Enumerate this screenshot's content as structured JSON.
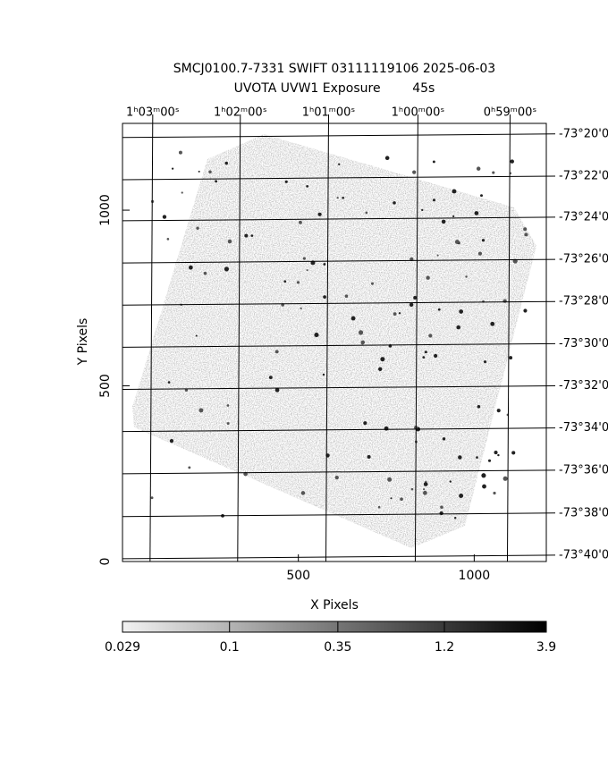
{
  "chart_data": {
    "type": "image",
    "title": "SMCJ0100.7-7331 SWIFT 03111119106 2025-06-03",
    "subtitle": "UVOTA UVW1 Exposure        45s",
    "x_label": "X Pixels",
    "y_label": "Y Pixels",
    "xlim": [
      0,
      1205
    ],
    "ylim": [
      0,
      1247
    ],
    "xticks": [
      500,
      1000
    ],
    "yticks": [
      0,
      500,
      1000
    ],
    "x2ticks": [
      {
        "value": 86,
        "label": "1ʰ03ᵐ00ˢ"
      },
      {
        "value": 335,
        "label": "1ʰ02ᵐ00ˢ"
      },
      {
        "value": 586,
        "label": "1ʰ01ᵐ00ˢ"
      },
      {
        "value": 840,
        "label": "1ʰ00ᵐ00ˢ"
      },
      {
        "value": 1102,
        "label": "0ʰ59ᵐ00ˢ"
      }
    ],
    "y2ticks": [
      {
        "value": 1217,
        "label": "-73°20'0"
      },
      {
        "value": 1097,
        "label": "-73°22'0"
      },
      {
        "value": 980,
        "label": "-73°24'0"
      },
      {
        "value": 860,
        "label": "-73°26'0"
      },
      {
        "value": 740,
        "label": "-73°28'0"
      },
      {
        "value": 620,
        "label": "-73°30'0"
      },
      {
        "value": 500,
        "label": "-73°32'0"
      },
      {
        "value": 380,
        "label": "-73°34'0"
      },
      {
        "value": 260,
        "label": "-73°36'0"
      },
      {
        "value": 138,
        "label": "-73°38'0"
      },
      {
        "value": 18,
        "label": "-73°40'0"
      }
    ],
    "grid": true,
    "colorbar": {
      "scale": "log",
      "lim": [
        0.029,
        3.9
      ],
      "ticks": [
        0.029,
        0.1,
        0.35,
        1.2,
        3.9
      ]
    }
  }
}
